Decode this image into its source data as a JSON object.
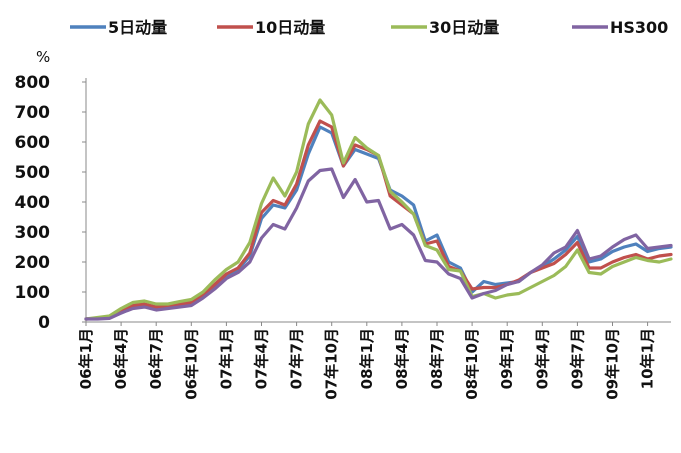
{
  "chart_data": {
    "type": "line",
    "title": "",
    "ylabel": "%",
    "xlabel": "",
    "ylim": [
      0,
      800
    ],
    "yticks": [
      0,
      100,
      200,
      300,
      400,
      500,
      600,
      700,
      800
    ],
    "grid": false,
    "legend_position": "top",
    "x": [
      "06年1月",
      "06年2月",
      "06年3月",
      "06年4月",
      "06年5月",
      "06年6月",
      "06年7月",
      "06年8月",
      "06年9月",
      "06年10月",
      "06年11月",
      "06年12月",
      "07年1月",
      "07年2月",
      "07年3月",
      "07年4月",
      "07年5月",
      "07年6月",
      "07年7月",
      "07年8月",
      "07年9月",
      "07年10月",
      "07年11月",
      "07年12月",
      "08年1月",
      "08年2月",
      "08年3月",
      "08年4月",
      "08年5月",
      "08年6月",
      "08年7月",
      "08年8月",
      "08年9月",
      "08年10月",
      "08年11月",
      "08年12月",
      "09年1月",
      "09年2月",
      "09年3月",
      "09年4月",
      "09年5月",
      "09年6月",
      "09年7月",
      "09年8月",
      "09年9月",
      "09年10月",
      "09年11月",
      "09年12月",
      "10年1月",
      "10年2月",
      "10年3月"
    ],
    "xtick_labels": [
      "06年1月",
      "06年4月",
      "06年7月",
      "06年10月",
      "07年1月",
      "07年4月",
      "07年7月",
      "07年10月",
      "08年1月",
      "08年4月",
      "08年7月",
      "08年10月",
      "09年1月",
      "09年4月",
      "09年7月",
      "09年10月",
      "10年1月"
    ],
    "series": [
      {
        "name": "5日动量",
        "color": "#4F81BD",
        "values": [
          10,
          12,
          15,
          30,
          48,
          52,
          45,
          48,
          55,
          60,
          85,
          115,
          150,
          175,
          220,
          345,
          390,
          380,
          440,
          560,
          650,
          630,
          520,
          575,
          560,
          545,
          440,
          420,
          390,
          270,
          290,
          200,
          180,
          100,
          135,
          125,
          130,
          135,
          165,
          185,
          210,
          240,
          285,
          200,
          210,
          235,
          250,
          260,
          235,
          245,
          250
        ]
      },
      {
        "name": "10日动量",
        "color": "#C0504D",
        "values": [
          10,
          12,
          15,
          35,
          55,
          60,
          50,
          55,
          60,
          65,
          90,
          125,
          160,
          180,
          230,
          365,
          405,
          390,
          460,
          590,
          670,
          650,
          520,
          590,
          575,
          555,
          420,
          390,
          360,
          260,
          270,
          185,
          170,
          110,
          115,
          115,
          125,
          140,
          165,
          180,
          195,
          225,
          265,
          180,
          180,
          200,
          215,
          225,
          210,
          220,
          225
        ]
      },
      {
        "name": "30日动量",
        "color": "#9BBB59",
        "values": [
          10,
          15,
          20,
          45,
          65,
          70,
          60,
          60,
          68,
          75,
          100,
          140,
          175,
          200,
          265,
          395,
          480,
          420,
          500,
          660,
          740,
          690,
          530,
          615,
          580,
          555,
          435,
          400,
          360,
          255,
          240,
          175,
          170,
          85,
          95,
          80,
          90,
          95,
          115,
          135,
          155,
          185,
          240,
          165,
          160,
          185,
          200,
          215,
          205,
          200,
          210
        ]
      },
      {
        "name": "HS300",
        "color": "#8064A2",
        "values": [
          10,
          10,
          12,
          30,
          45,
          50,
          40,
          45,
          50,
          55,
          80,
          110,
          145,
          165,
          200,
          280,
          325,
          310,
          380,
          470,
          505,
          510,
          415,
          475,
          400,
          405,
          310,
          325,
          290,
          205,
          200,
          160,
          145,
          80,
          95,
          105,
          125,
          135,
          165,
          190,
          230,
          250,
          305,
          210,
          220,
          250,
          275,
          290,
          245,
          250,
          255
        ]
      }
    ]
  }
}
